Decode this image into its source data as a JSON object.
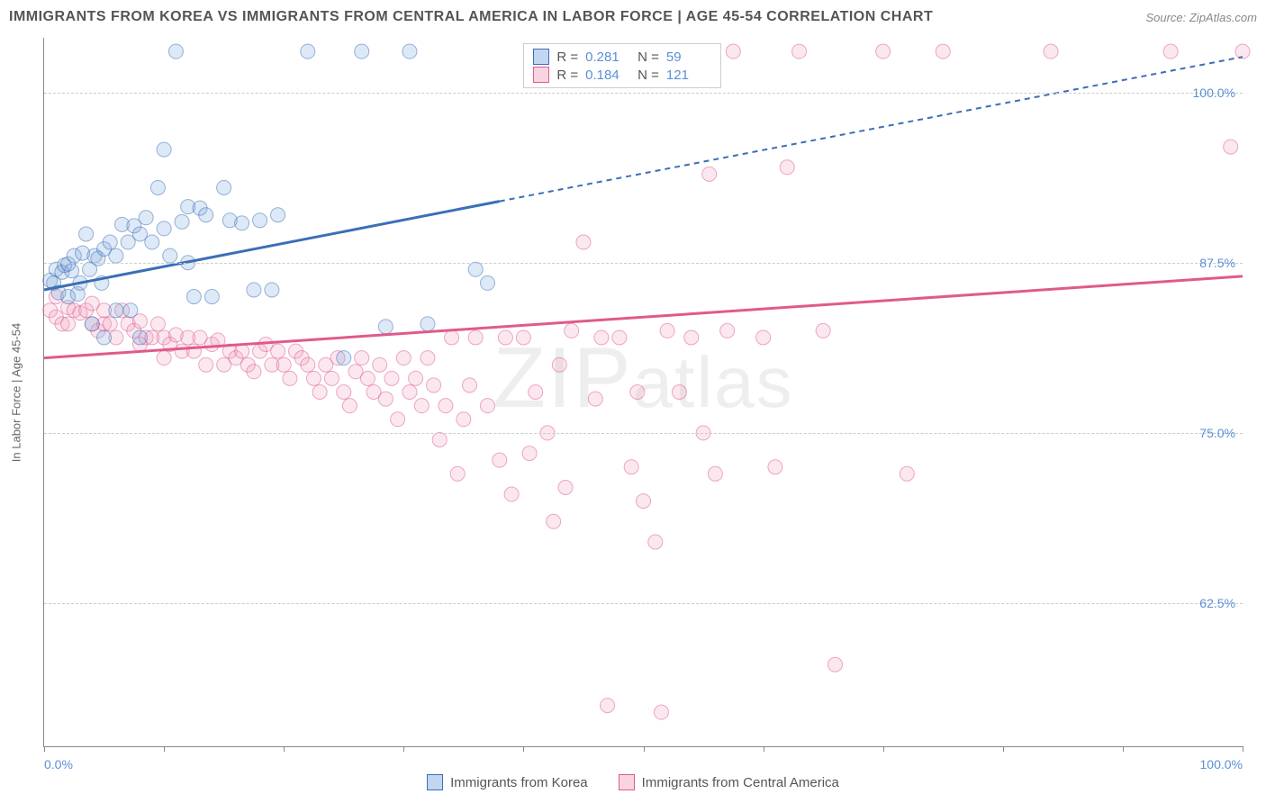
{
  "title": "IMMIGRANTS FROM KOREA VS IMMIGRANTS FROM CENTRAL AMERICA IN LABOR FORCE | AGE 45-54 CORRELATION CHART",
  "source_label": "Source: ",
  "source_value": "ZipAtlas.com",
  "yaxis_title": "In Labor Force | Age 45-54",
  "watermark_a": "ZIP",
  "watermark_b": "atlas",
  "chart": {
    "type": "scatter",
    "xlim": [
      0,
      100
    ],
    "ylim": [
      52,
      104
    ],
    "x_min_label": "0.0%",
    "x_max_label": "100.0%",
    "y_ticks": [
      62.5,
      75.0,
      87.5,
      100.0
    ],
    "y_tick_labels": [
      "62.5%",
      "75.0%",
      "87.5%",
      "100.0%"
    ],
    "x_tick_positions": [
      0,
      10,
      20,
      30,
      40,
      50,
      60,
      70,
      80,
      90,
      100
    ],
    "grid_color": "#cccccc",
    "axis_color": "#888888",
    "tick_label_color": "#5b8fd6",
    "marker_radius": 8,
    "marker_opacity": 0.55,
    "line_width": 3,
    "series": [
      {
        "name": "Immigrants from Korea",
        "stroke": "#3b6fb6",
        "fill": "rgba(120,165,220,0.45)",
        "R_label": "R =",
        "R": "0.281",
        "N_label": "N =",
        "N": "59",
        "trend": {
          "solid": {
            "x1": 0,
            "y1": 85.5,
            "x2": 38,
            "y2": 92.0
          },
          "dashed": {
            "x1": 38,
            "y1": 92.0,
            "x2": 100,
            "y2": 102.6
          }
        },
        "points": [
          [
            0.5,
            86.2
          ],
          [
            0.8,
            86.0
          ],
          [
            1.0,
            87.0
          ],
          [
            1.2,
            85.3
          ],
          [
            1.5,
            86.8
          ],
          [
            1.7,
            87.3
          ],
          [
            2.0,
            87.4
          ],
          [
            2.0,
            85.0
          ],
          [
            2.3,
            86.9
          ],
          [
            2.5,
            88.0
          ],
          [
            2.8,
            85.2
          ],
          [
            3.0,
            86.0
          ],
          [
            3.2,
            88.2
          ],
          [
            3.5,
            89.6
          ],
          [
            3.8,
            87.0
          ],
          [
            4.0,
            83.0
          ],
          [
            4.2,
            88.0
          ],
          [
            4.5,
            87.8
          ],
          [
            4.8,
            86.0
          ],
          [
            5.0,
            88.5
          ],
          [
            5.0,
            82.0
          ],
          [
            5.5,
            89.0
          ],
          [
            6.0,
            84.0
          ],
          [
            6.0,
            88.0
          ],
          [
            6.5,
            90.3
          ],
          [
            7.0,
            89.0
          ],
          [
            7.2,
            84.0
          ],
          [
            7.5,
            90.2
          ],
          [
            8.0,
            89.6
          ],
          [
            8.0,
            82.0
          ],
          [
            8.5,
            90.8
          ],
          [
            9.0,
            89.0
          ],
          [
            9.5,
            93.0
          ],
          [
            10.0,
            90.0
          ],
          [
            10.0,
            95.8
          ],
          [
            10.5,
            88.0
          ],
          [
            11.0,
            103.0
          ],
          [
            11.5,
            90.5
          ],
          [
            12.0,
            91.6
          ],
          [
            12.0,
            87.5
          ],
          [
            12.5,
            85.0
          ],
          [
            13.0,
            91.5
          ],
          [
            13.5,
            91.0
          ],
          [
            14.0,
            85.0
          ],
          [
            15.0,
            93.0
          ],
          [
            15.5,
            90.6
          ],
          [
            16.5,
            90.4
          ],
          [
            17.5,
            85.5
          ],
          [
            18.0,
            90.6
          ],
          [
            19.0,
            85.5
          ],
          [
            19.5,
            91.0
          ],
          [
            22.0,
            103.0
          ],
          [
            25.0,
            80.5
          ],
          [
            26.5,
            103.0
          ],
          [
            28.5,
            82.8
          ],
          [
            32.0,
            83.0
          ],
          [
            30.5,
            103.0
          ],
          [
            36.0,
            87.0
          ],
          [
            37.0,
            86.0
          ]
        ]
      },
      {
        "name": "Immigrants from Central America",
        "stroke": "#e05a8c",
        "fill": "rgba(240,160,190,0.45)",
        "R_label": "R =",
        "R": "0.184",
        "N_label": "N =",
        "N": "121",
        "trend": {
          "solid": {
            "x1": 0,
            "y1": 80.5,
            "x2": 100,
            "y2": 86.5
          }
        },
        "points": [
          [
            0.5,
            84.0
          ],
          [
            1.0,
            83.5
          ],
          [
            1.0,
            85.0
          ],
          [
            1.5,
            83.0
          ],
          [
            2.0,
            84.2
          ],
          [
            2.0,
            83.0
          ],
          [
            2.5,
            84.0
          ],
          [
            3.0,
            83.8
          ],
          [
            3.5,
            84.0
          ],
          [
            4.0,
            83.0
          ],
          [
            4.0,
            84.5
          ],
          [
            4.5,
            82.5
          ],
          [
            5.0,
            83.0
          ],
          [
            5.0,
            84.0
          ],
          [
            5.5,
            83.0
          ],
          [
            6.0,
            82.0
          ],
          [
            6.5,
            84.0
          ],
          [
            7.0,
            83.0
          ],
          [
            7.5,
            82.5
          ],
          [
            8.0,
            83.2
          ],
          [
            8.0,
            81.5
          ],
          [
            8.5,
            82.0
          ],
          [
            9.0,
            82.0
          ],
          [
            9.5,
            83.0
          ],
          [
            10.0,
            82.0
          ],
          [
            10.0,
            80.5
          ],
          [
            10.5,
            81.5
          ],
          [
            11.0,
            82.2
          ],
          [
            11.5,
            81.0
          ],
          [
            12.0,
            82.0
          ],
          [
            12.5,
            81.0
          ],
          [
            13.0,
            82.0
          ],
          [
            13.5,
            80.0
          ],
          [
            14.0,
            81.5
          ],
          [
            14.5,
            81.8
          ],
          [
            15.0,
            80.0
          ],
          [
            15.5,
            81.0
          ],
          [
            16.0,
            80.5
          ],
          [
            16.5,
            81.0
          ],
          [
            17.0,
            80.0
          ],
          [
            17.5,
            79.5
          ],
          [
            18.0,
            81.0
          ],
          [
            18.5,
            81.5
          ],
          [
            19.0,
            80.0
          ],
          [
            19.5,
            81.0
          ],
          [
            20.0,
            80.0
          ],
          [
            20.5,
            79.0
          ],
          [
            21.0,
            81.0
          ],
          [
            21.5,
            80.5
          ],
          [
            22.0,
            80.0
          ],
          [
            22.5,
            79.0
          ],
          [
            23.0,
            78.0
          ],
          [
            23.5,
            80.0
          ],
          [
            24.0,
            79.0
          ],
          [
            24.5,
            80.5
          ],
          [
            25.0,
            78.0
          ],
          [
            25.5,
            77.0
          ],
          [
            26.0,
            79.5
          ],
          [
            26.5,
            80.5
          ],
          [
            27.0,
            79.0
          ],
          [
            27.5,
            78.0
          ],
          [
            28.0,
            80.0
          ],
          [
            28.5,
            77.5
          ],
          [
            29.0,
            79.0
          ],
          [
            29.5,
            76.0
          ],
          [
            30.0,
            80.5
          ],
          [
            30.5,
            78.0
          ],
          [
            31.0,
            79.0
          ],
          [
            31.5,
            77.0
          ],
          [
            32.0,
            80.5
          ],
          [
            32.5,
            78.5
          ],
          [
            33.0,
            74.5
          ],
          [
            33.5,
            77.0
          ],
          [
            34.0,
            82.0
          ],
          [
            34.5,
            72.0
          ],
          [
            35.0,
            76.0
          ],
          [
            35.5,
            78.5
          ],
          [
            36.0,
            82.0
          ],
          [
            37.0,
            77.0
          ],
          [
            38.0,
            73.0
          ],
          [
            38.5,
            82.0
          ],
          [
            39.0,
            70.5
          ],
          [
            40.0,
            82.0
          ],
          [
            40.5,
            73.5
          ],
          [
            41.0,
            78.0
          ],
          [
            42.0,
            75.0
          ],
          [
            42.5,
            68.5
          ],
          [
            43.0,
            80.0
          ],
          [
            43.5,
            71.0
          ],
          [
            44.0,
            82.5
          ],
          [
            45.0,
            89.0
          ],
          [
            46.0,
            77.5
          ],
          [
            46.5,
            82.0
          ],
          [
            47.0,
            55.0
          ],
          [
            48.0,
            82.0
          ],
          [
            49.0,
            72.5
          ],
          [
            49.5,
            78.0
          ],
          [
            50.0,
            70.0
          ],
          [
            51.0,
            67.0
          ],
          [
            51.5,
            54.5
          ],
          [
            52.0,
            82.5
          ],
          [
            53.0,
            78.0
          ],
          [
            54.0,
            82.0
          ],
          [
            55.0,
            75.0
          ],
          [
            55.5,
            94.0
          ],
          [
            56.0,
            72.0
          ],
          [
            57.0,
            82.5
          ],
          [
            57.5,
            103.0
          ],
          [
            60.0,
            82.0
          ],
          [
            61.0,
            72.5
          ],
          [
            62.0,
            94.5
          ],
          [
            63.0,
            103.0
          ],
          [
            65.0,
            82.5
          ],
          [
            66.0,
            58.0
          ],
          [
            70.0,
            103.0
          ],
          [
            72.0,
            72.0
          ],
          [
            75.0,
            103.0
          ],
          [
            84.0,
            103.0
          ],
          [
            94.0,
            103.0
          ],
          [
            100.0,
            103.0
          ],
          [
            99.0,
            96.0
          ]
        ]
      }
    ]
  },
  "legend": {
    "items": [
      {
        "label": "Immigrants from Korea"
      },
      {
        "label": "Immigrants from Central America"
      }
    ]
  }
}
